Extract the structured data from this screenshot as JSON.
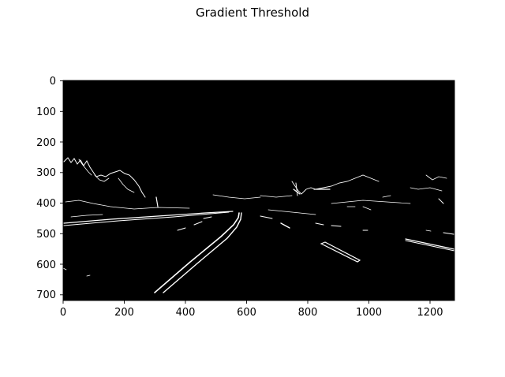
{
  "figure": {
    "title": "Gradient Threshold"
  },
  "axes": {
    "x_ticks": [
      "0",
      "200",
      "400",
      "600",
      "800",
      "1000",
      "1200"
    ],
    "y_ticks": [
      "0",
      "100",
      "200",
      "300",
      "400",
      "500",
      "600",
      "700"
    ],
    "x_range": [
      0,
      1280
    ],
    "y_range": [
      0,
      720
    ]
  },
  "image": {
    "description_colors": {
      "background": "#000000",
      "edges": "#ffffff"
    }
  }
}
